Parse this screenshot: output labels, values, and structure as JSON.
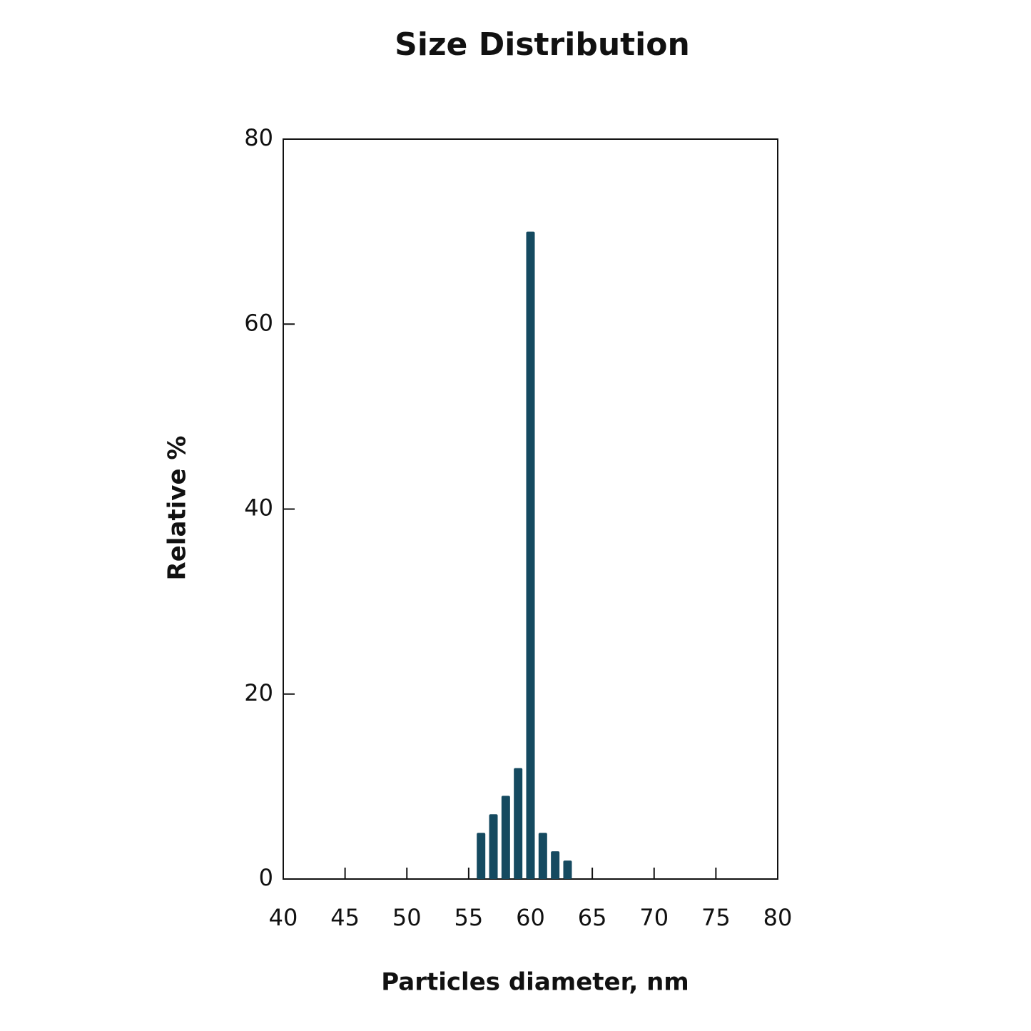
{
  "chart_data": {
    "type": "bar",
    "title": "Size Distribution",
    "x_label": "Particles diameter, nm",
    "y_label": "Relative %",
    "x": [
      56,
      57,
      58,
      59,
      60,
      61,
      62,
      63
    ],
    "values": [
      5,
      7,
      9,
      12,
      70,
      5,
      3,
      2
    ],
    "color": "#154a60",
    "xlim": [
      40,
      80
    ],
    "xticks": [
      40,
      45,
      50,
      55,
      60,
      65,
      70,
      75,
      80
    ],
    "ylim": [
      0,
      80
    ],
    "yticks": [
      0,
      20,
      40,
      60,
      80
    ],
    "grid": false
  }
}
